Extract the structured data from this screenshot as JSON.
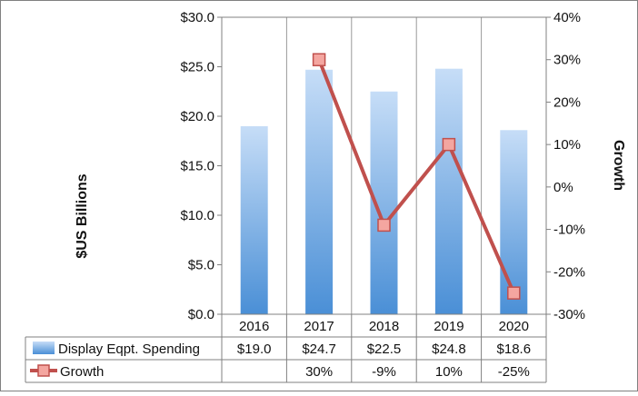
{
  "chart_data": {
    "type": "bar",
    "categories": [
      "2016",
      "2017",
      "2018",
      "2019",
      "2020"
    ],
    "series": [
      {
        "name": "Display Eqpt. Spending",
        "kind": "bar",
        "axis": "left",
        "values": [
          19.0,
          24.7,
          22.5,
          24.8,
          18.6
        ],
        "labels": [
          "$19.0",
          "$24.7",
          "$22.5",
          "$24.8",
          "$18.6"
        ],
        "color": "#5b9bd5"
      },
      {
        "name": "Growth",
        "kind": "line",
        "axis": "right",
        "values": [
          null,
          30,
          -9,
          10,
          -25
        ],
        "labels": [
          "",
          "30%",
          "-9%",
          "10%",
          "-25%"
        ],
        "color": "#c0504d"
      }
    ],
    "ylabel": "$US Billions",
    "y2label": "Growth",
    "ylim": [
      0,
      30
    ],
    "y2lim": [
      -30,
      40
    ],
    "yticks": [
      "$0.0",
      "$5.0",
      "$10.0",
      "$15.0",
      "$20.0",
      "$25.0",
      "$30.0"
    ],
    "y2ticks": [
      "-30%",
      "-20%",
      "-10%",
      "0%",
      "10%",
      "20%",
      "30%",
      "40%"
    ],
    "grid": "vertical",
    "legend": "data-table-left"
  }
}
